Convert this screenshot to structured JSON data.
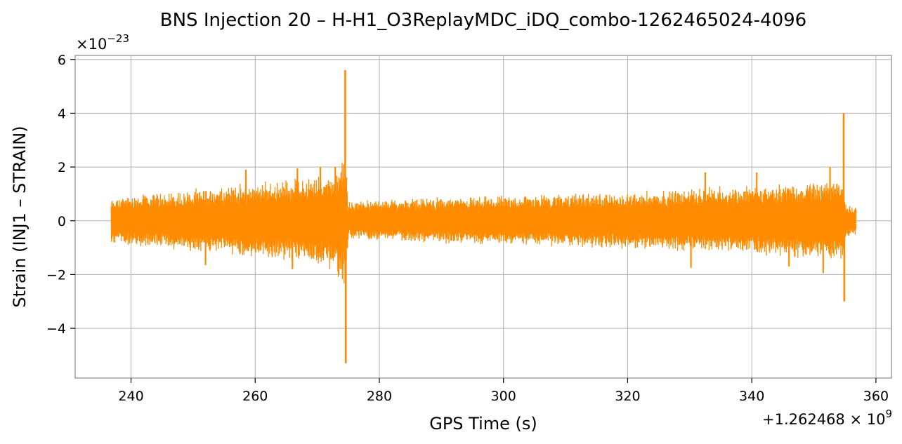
{
  "chart_data": {
    "type": "line",
    "title": "BNS Injection 20 – H-H1_O3ReplayMDC_iDQ_combo-1262465024-4096",
    "xlabel": "GPS Time (s)",
    "ylabel": "Strain (INJ1 – STRAIN)",
    "x_offset_label": "+1.262468 × 10",
    "x_offset_exp": "9",
    "y_scale_label": "×10",
    "y_scale_exp": "−23",
    "xlim": [
      231,
      362.5
    ],
    "ylim": [
      -5.85,
      6.15
    ],
    "x_ticks": [
      240,
      260,
      280,
      300,
      320,
      340,
      360
    ],
    "x_tick_labels": [
      "240",
      "260",
      "280",
      "300",
      "320",
      "340",
      "360"
    ],
    "y_ticks": [
      -4,
      -2,
      0,
      2,
      4,
      6
    ],
    "y_tick_labels": [
      "−4",
      "−2",
      "0",
      "2",
      "4",
      "6"
    ],
    "grid": true,
    "color": "#ff8c00",
    "series": [
      {
        "x_range": [
          236.8,
          356.8
        ],
        "envelope": [
          {
            "x": 236.8,
            "lo": -0.85,
            "hi": 0.85
          },
          {
            "x": 240,
            "lo": -0.95,
            "hi": 1.0
          },
          {
            "x": 245,
            "lo": -1.05,
            "hi": 1.1
          },
          {
            "x": 250,
            "lo": -1.15,
            "hi": 1.2
          },
          {
            "x": 255,
            "lo": -1.3,
            "hi": 1.35
          },
          {
            "x": 260,
            "lo": -1.45,
            "hi": 1.45
          },
          {
            "x": 265,
            "lo": -1.55,
            "hi": 1.6
          },
          {
            "x": 268,
            "lo": -1.6,
            "hi": 1.65
          },
          {
            "x": 270,
            "lo": -1.7,
            "hi": 1.75
          },
          {
            "x": 272,
            "lo": -1.9,
            "hi": 1.9
          },
          {
            "x": 273.5,
            "lo": -2.2,
            "hi": 2.1
          },
          {
            "x": 274.6,
            "lo": -2.5,
            "hi": 2.5
          },
          {
            "x": 275.0,
            "lo": -0.7,
            "hi": 0.75
          },
          {
            "x": 280,
            "lo": -0.75,
            "hi": 0.8
          },
          {
            "x": 290,
            "lo": -0.85,
            "hi": 0.9
          },
          {
            "x": 300,
            "lo": -0.9,
            "hi": 0.95
          },
          {
            "x": 310,
            "lo": -1.0,
            "hi": 1.05
          },
          {
            "x": 320,
            "lo": -1.05,
            "hi": 1.1
          },
          {
            "x": 330,
            "lo": -1.2,
            "hi": 1.25
          },
          {
            "x": 340,
            "lo": -1.3,
            "hi": 1.35
          },
          {
            "x": 350,
            "lo": -1.45,
            "hi": 1.5
          },
          {
            "x": 354.5,
            "lo": -1.65,
            "hi": 1.65
          },
          {
            "x": 355.2,
            "lo": -0.6,
            "hi": 0.6
          },
          {
            "x": 356.8,
            "lo": -0.55,
            "hi": 0.55
          }
        ],
        "spikes": [
          {
            "x": 274.5,
            "value": 5.6
          },
          {
            "x": 274.6,
            "value": -5.3
          },
          {
            "x": 354.8,
            "value": 4.0
          },
          {
            "x": 354.9,
            "value": -3.0
          }
        ],
        "bursts": [
          {
            "x": 258.5,
            "value": 1.9
          },
          {
            "x": 266.8,
            "value": 1.95
          },
          {
            "x": 270.5,
            "value": 2.0
          },
          {
            "x": 272.9,
            "value": 2.0
          },
          {
            "x": 266.0,
            "value": -1.8
          },
          {
            "x": 252.0,
            "value": -1.65
          },
          {
            "x": 332.5,
            "value": 1.8
          },
          {
            "x": 340.8,
            "value": 1.8
          },
          {
            "x": 352.6,
            "value": 2.0
          },
          {
            "x": 330.2,
            "value": -1.75
          },
          {
            "x": 351.5,
            "value": -1.95
          },
          {
            "x": 346.0,
            "value": -1.7
          }
        ]
      }
    ]
  }
}
